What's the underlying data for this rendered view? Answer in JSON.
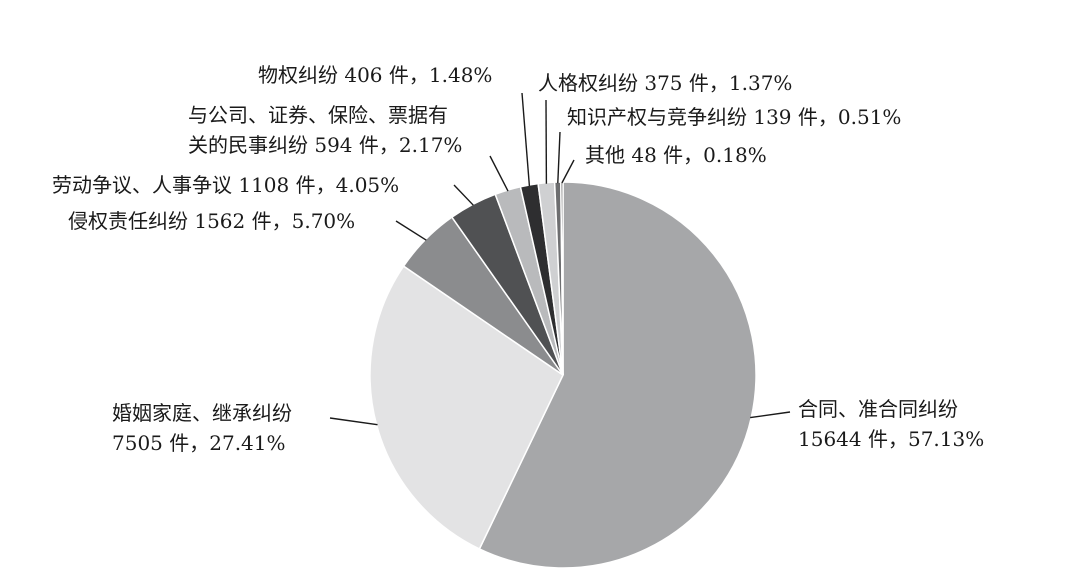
{
  "chart_data": {
    "type": "pie",
    "title": "",
    "start_angle_deg": 0,
    "direction": "clockwise",
    "slices": [
      {
        "name": "合同、准合同纠纷",
        "count": 15644,
        "percent": 57.13,
        "color": "#a6a7a9",
        "label_lines": [
          "合同、准合同纠纷",
          "15644 件，57.13%"
        ]
      },
      {
        "name": "婚姻家庭、继承纠纷",
        "count": 7505,
        "percent": 27.41,
        "color": "#e3e3e4",
        "label_lines": [
          "婚姻家庭、继承纠纷",
          "7505 件，27.41%"
        ]
      },
      {
        "name": "侵权责任纠纷",
        "count": 1562,
        "percent": 5.7,
        "color": "#8b8c8e",
        "label_lines": [
          "侵权责任纠纷 1562 件，5.70%"
        ]
      },
      {
        "name": "劳动争议、人事争议",
        "count": 1108,
        "percent": 4.05,
        "color": "#505153",
        "label_lines": [
          "劳动争议、人事争议 1108 件，4.05%"
        ]
      },
      {
        "name": "与公司、证券、保险、票据有关的民事纠纷",
        "count": 594,
        "percent": 2.17,
        "color": "#b9babc",
        "label_lines": [
          "与公司、证券、保险、票据有",
          "关的民事纠纷 594 件，2.17%"
        ]
      },
      {
        "name": "物权纠纷",
        "count": 406,
        "percent": 1.48,
        "color": "#2e2e30",
        "label_lines": [
          "物权纠纷 406 件，1.48%"
        ]
      },
      {
        "name": "人格权纠纷",
        "count": 375,
        "percent": 1.37,
        "color": "#cfd0d2",
        "label_lines": [
          "人格权纠纷 375 件，1.37%"
        ]
      },
      {
        "name": "知识产权与竞争纠纷",
        "count": 139,
        "percent": 0.51,
        "color": "#6d6e70",
        "label_lines": [
          "知识产权与竞争纠纷 139 件，0.51%"
        ]
      },
      {
        "name": "其他",
        "count": 48,
        "percent": 0.18,
        "color": "#4a4a4c",
        "label_lines": [
          "其他 48 件，0.18%"
        ]
      }
    ]
  }
}
